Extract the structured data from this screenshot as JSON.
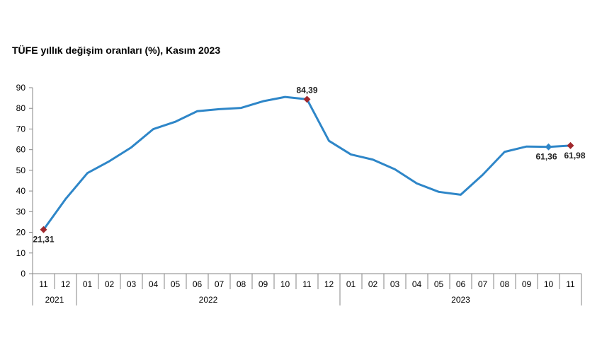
{
  "chart_data": {
    "type": "line",
    "title": "TÜFE yıllık değişim oranları (%), Kasım 2023",
    "xlabel": "",
    "ylabel": "",
    "ylim": [
      0,
      90
    ],
    "yticks": [
      0,
      10,
      20,
      30,
      40,
      50,
      60,
      70,
      80,
      90
    ],
    "grid": false,
    "months": [
      "11",
      "12",
      "01",
      "02",
      "03",
      "04",
      "05",
      "06",
      "07",
      "08",
      "09",
      "10",
      "11",
      "12",
      "01",
      "02",
      "03",
      "04",
      "05",
      "06",
      "07",
      "08",
      "09",
      "10",
      "11"
    ],
    "years": [
      {
        "label": "2021",
        "span": 2
      },
      {
        "label": "2022",
        "span": 12
      },
      {
        "label": "2023",
        "span": 11
      }
    ],
    "series": [
      {
        "name": "TÜFE",
        "color": "#2e86c8",
        "values": [
          21.31,
          36.08,
          48.69,
          54.44,
          61.14,
          69.97,
          73.5,
          78.62,
          79.6,
          80.21,
          83.45,
          85.51,
          84.39,
          64.27,
          57.68,
          55.18,
          50.51,
          43.68,
          39.59,
          38.21,
          47.83,
          58.94,
          61.53,
          61.36,
          61.98
        ]
      }
    ],
    "annotations": [
      {
        "index": 0,
        "label": "21,31",
        "marker_color": "#a0282d",
        "position": "below"
      },
      {
        "index": 12,
        "label": "84,39",
        "marker_color": "#a0282d",
        "position": "above"
      },
      {
        "index": 23,
        "label": "61,36",
        "marker_color": "#2e86c8",
        "position": "below"
      },
      {
        "index": 24,
        "label": "61,98",
        "marker_color": "#a0282d",
        "position": "below"
      }
    ]
  }
}
